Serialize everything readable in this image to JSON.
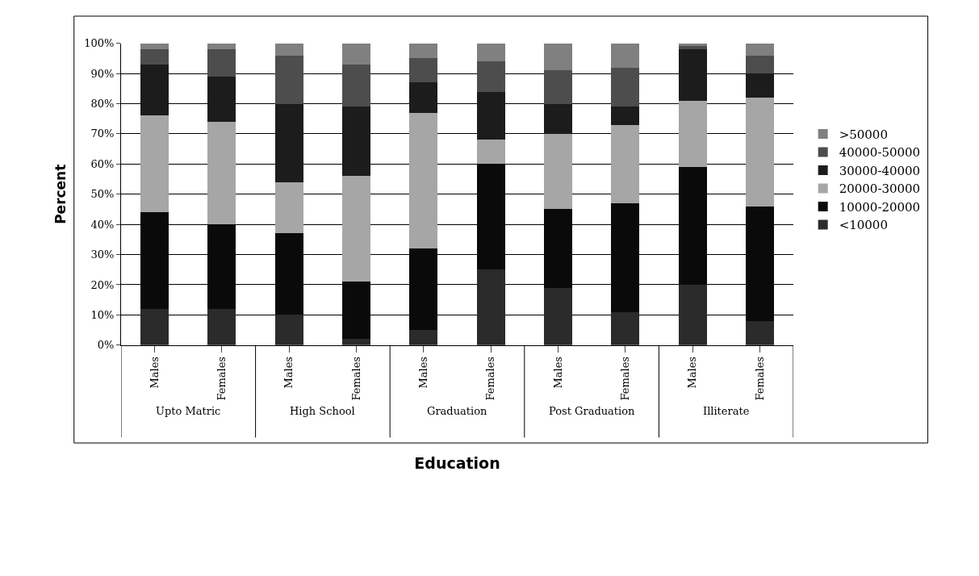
{
  "chart_data": {
    "type": "bar",
    "stacked": true,
    "xlabel": "Education",
    "ylabel": "Percent",
    "categories": [
      "Males",
      "Females",
      "Males",
      "Females",
      "Males",
      "Females",
      "Males",
      "Females",
      "Males",
      "Females"
    ],
    "annotations": [
      "Upto Matric",
      "High School",
      "Graduation",
      "Post Graduation",
      "Illiterate"
    ],
    "series": [
      {
        "name": "<10000",
        "color": "#2b2b2b",
        "values": [
          12,
          12,
          10,
          2,
          5,
          25,
          19,
          11,
          20,
          8
        ]
      },
      {
        "name": "10000-20000",
        "color": "#0a0a0a",
        "values": [
          32,
          28,
          27,
          19,
          27,
          35,
          26,
          36,
          39,
          38
        ]
      },
      {
        "name": "20000-30000",
        "color": "#a6a6a6",
        "values": [
          32,
          34,
          17,
          35,
          45,
          8,
          25,
          26,
          22,
          36
        ]
      },
      {
        "name": "30000-40000",
        "color": "#1c1c1c",
        "values": [
          17,
          15,
          26,
          23,
          10,
          16,
          10,
          6,
          17,
          8
        ]
      },
      {
        "name": "40000-50000",
        "color": "#4d4d4d",
        "values": [
          5,
          9,
          16,
          14,
          8,
          10,
          11,
          13,
          1,
          6
        ]
      },
      {
        "name": ">50000",
        "color": "#808080",
        "values": [
          2,
          2,
          4,
          7,
          5,
          6,
          9,
          8,
          1,
          4
        ]
      }
    ],
    "ylim": [
      0,
      100
    ],
    "yticks": [
      {
        "value": 0,
        "label": "0%"
      },
      {
        "value": 10,
        "label": "10%"
      },
      {
        "value": 20,
        "label": "20%"
      },
      {
        "value": 30,
        "label": "30%"
      },
      {
        "value": 40,
        "label": "40%"
      },
      {
        "value": 50,
        "label": "50%"
      },
      {
        "value": 60,
        "label": "60%"
      },
      {
        "value": 70,
        "label": "70%"
      },
      {
        "value": 80,
        "label": "80%"
      },
      {
        "value": 90,
        "label": "90%"
      },
      {
        "value": 100,
        "label": "100%"
      }
    ],
    "grid": "y",
    "legend": "right"
  }
}
